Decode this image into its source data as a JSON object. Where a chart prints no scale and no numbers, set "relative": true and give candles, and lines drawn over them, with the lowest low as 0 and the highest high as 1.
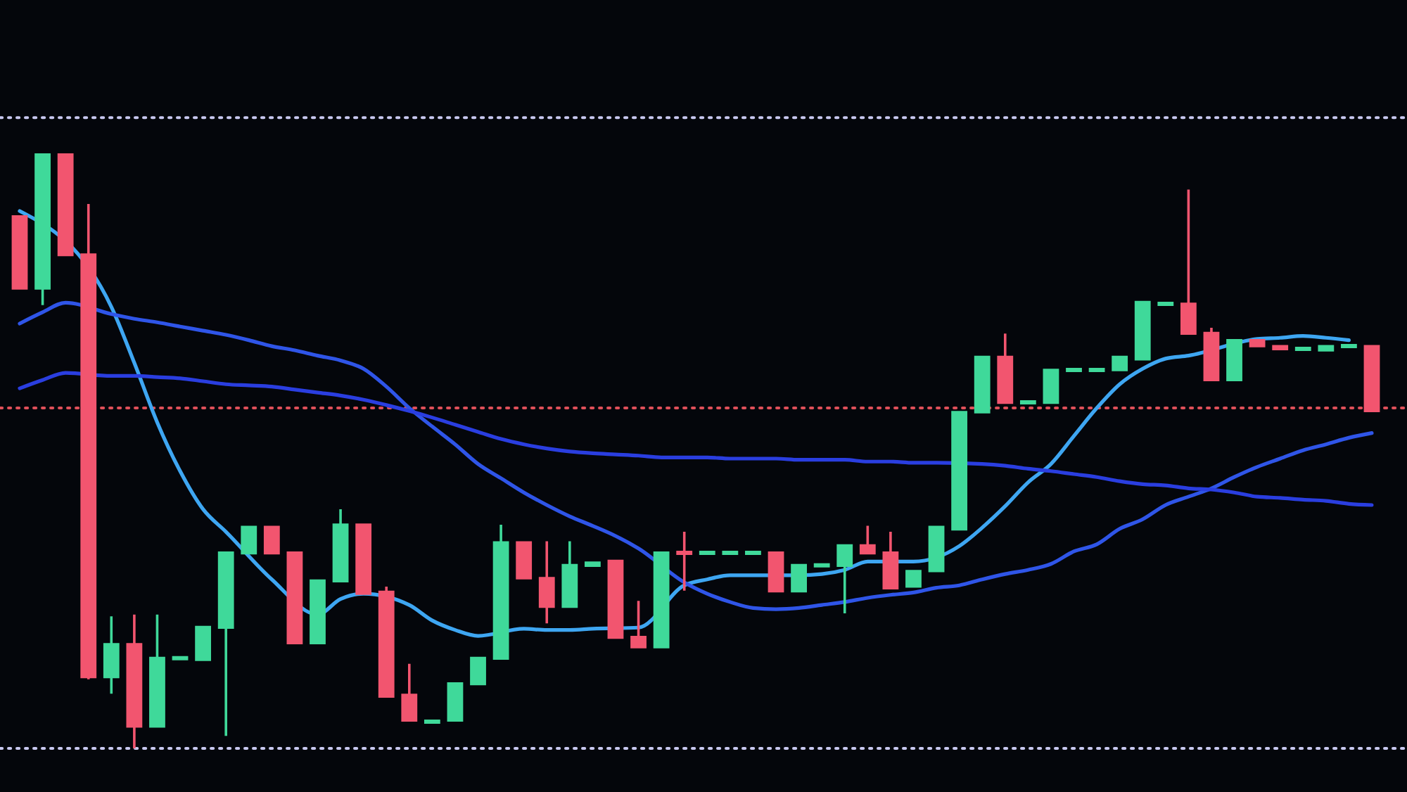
{
  "chart_data": {
    "type": "candlestick",
    "relative": true,
    "categories": [
      null,
      null,
      null,
      null,
      null,
      null,
      null,
      null,
      null,
      null,
      null,
      null,
      null,
      null,
      null,
      null,
      null,
      null,
      null,
      null,
      null,
      null,
      null,
      null,
      null,
      null,
      null,
      null,
      null,
      null,
      null,
      null,
      null,
      null,
      null,
      null,
      null,
      null,
      null,
      null,
      null,
      null,
      null,
      null,
      null,
      null,
      null,
      null,
      null,
      null,
      null,
      null,
      null,
      null,
      null,
      null,
      null,
      null,
      null,
      null
    ],
    "ohlc": [
      [
        0.896,
        0.896,
        0.771,
        0.771
      ],
      [
        0.771,
        1.0,
        0.745,
        1.0
      ],
      [
        1.0,
        1.0,
        0.827,
        0.827
      ],
      [
        0.832,
        0.915,
        0.116,
        0.118
      ],
      [
        0.118,
        0.222,
        0.092,
        0.177
      ],
      [
        0.177,
        0.225,
        0.0,
        0.035
      ],
      [
        0.035,
        0.225,
        0.035,
        0.154
      ],
      [
        0.149,
        0.154,
        0.149,
        0.154
      ],
      [
        0.147,
        0.206,
        0.147,
        0.206
      ],
      [
        0.201,
        0.331,
        0.021,
        0.331
      ],
      [
        0.326,
        0.374,
        0.326,
        0.374
      ],
      [
        0.374,
        0.374,
        0.326,
        0.326
      ],
      [
        0.331,
        0.331,
        0.175,
        0.175
      ],
      [
        0.175,
        0.284,
        0.175,
        0.284
      ],
      [
        0.279,
        0.402,
        0.279,
        0.378
      ],
      [
        0.378,
        0.378,
        0.258,
        0.258
      ],
      [
        0.265,
        0.272,
        0.085,
        0.085
      ],
      [
        0.092,
        0.142,
        0.045,
        0.045
      ],
      [
        0.043,
        0.047,
        0.043,
        0.047
      ],
      [
        0.045,
        0.111,
        0.045,
        0.111
      ],
      [
        0.106,
        0.154,
        0.106,
        0.154
      ],
      [
        0.149,
        0.376,
        0.149,
        0.348
      ],
      [
        0.348,
        0.348,
        0.284,
        0.284
      ],
      [
        0.288,
        0.348,
        0.21,
        0.236
      ],
      [
        0.236,
        0.348,
        0.236,
        0.31
      ],
      [
        0.305,
        0.314,
        0.305,
        0.314
      ],
      [
        0.317,
        0.317,
        0.184,
        0.184
      ],
      [
        0.189,
        0.248,
        0.168,
        0.168
      ],
      [
        0.168,
        0.331,
        0.168,
        0.331
      ],
      [
        0.331,
        0.364,
        0.265,
        0.326
      ],
      [
        0.326,
        0.331,
        0.326,
        0.331
      ],
      [
        0.326,
        0.331,
        0.326,
        0.331
      ],
      [
        0.326,
        0.331,
        0.326,
        0.331
      ],
      [
        0.331,
        0.331,
        0.262,
        0.262
      ],
      [
        0.262,
        0.31,
        0.262,
        0.31
      ],
      [
        0.305,
        0.31,
        0.305,
        0.31
      ],
      [
        0.305,
        0.343,
        0.227,
        0.343
      ],
      [
        0.343,
        0.374,
        0.326,
        0.326
      ],
      [
        0.331,
        0.364,
        0.267,
        0.267
      ],
      [
        0.27,
        0.3,
        0.27,
        0.3
      ],
      [
        0.296,
        0.374,
        0.296,
        0.374
      ],
      [
        0.366,
        0.567,
        0.366,
        0.567
      ],
      [
        0.563,
        0.66,
        0.563,
        0.66
      ],
      [
        0.66,
        0.697,
        0.579,
        0.579
      ],
      [
        0.579,
        0.584,
        0.579,
        0.584
      ],
      [
        0.579,
        0.638,
        0.579,
        0.638
      ],
      [
        0.634,
        0.638,
        0.634,
        0.638
      ],
      [
        0.634,
        0.638,
        0.634,
        0.638
      ],
      [
        0.634,
        0.66,
        0.634,
        0.66
      ],
      [
        0.652,
        0.752,
        0.652,
        0.752
      ],
      [
        0.745,
        0.749,
        0.745,
        0.749
      ],
      [
        0.749,
        0.939,
        0.695,
        0.695
      ],
      [
        0.7,
        0.707,
        0.617,
        0.617
      ],
      [
        0.617,
        0.688,
        0.617,
        0.688
      ],
      [
        0.688,
        0.688,
        0.674,
        0.674
      ],
      [
        0.678,
        0.678,
        0.669,
        0.669
      ],
      [
        0.669,
        0.674,
        0.669,
        0.674
      ],
      [
        0.667,
        0.678,
        0.667,
        0.678
      ],
      [
        0.674,
        0.678,
        0.674,
        0.678
      ],
      [
        0.678,
        0.678,
        0.565,
        0.565
      ]
    ],
    "colors": [
      "#f2556f",
      "#3fd99a",
      "#f2556f",
      "#f2556f",
      "#3fd99a",
      "#f2556f",
      "#3fd99a",
      "#3fd99a",
      "#3fd99a",
      "#3fd99a",
      "#3fd99a",
      "#f2556f",
      "#f2556f",
      "#3fd99a",
      "#3fd99a",
      "#f2556f",
      "#f2556f",
      "#f2556f",
      "#3fd99a",
      "#3fd99a",
      "#3fd99a",
      "#3fd99a",
      "#f2556f",
      "#f2556f",
      "#3fd99a",
      "#3fd99a",
      "#f2556f",
      "#f2556f",
      "#3fd99a",
      "#f2556f",
      "#3fd99a",
      "#3fd99a",
      "#3fd99a",
      "#f2556f",
      "#3fd99a",
      "#3fd99a",
      "#3fd99a",
      "#f2556f",
      "#f2556f",
      "#3fd99a",
      "#3fd99a",
      "#3fd99a",
      "#3fd99a",
      "#f2556f",
      "#3fd99a",
      "#3fd99a",
      "#3fd99a",
      "#3fd99a",
      "#3fd99a",
      "#3fd99a",
      "#3fd99a",
      "#f2556f",
      "#f2556f",
      "#3fd99a",
      "#f2556f",
      "#f2556f",
      "#3fd99a",
      "#3fd99a",
      "#3fd99a",
      "#f2556f"
    ],
    "series": [
      {
        "type": "line",
        "color": "#3ea6f2",
        "values": [
          0.903,
          null,
          null,
          null,
          0.742,
          0.648,
          0.548,
          0.466,
          0.402,
          0.364,
          null,
          0.284,
          null,
          0.225,
          0.251,
          0.26,
          null,
          0.241,
          0.215,
          0.199,
          0.189,
          null,
          0.201,
          0.199,
          0.199,
          0.201,
          null,
          0.203,
          null,
          0.274,
          0.284,
          0.291,
          0.291,
          0.291,
          0.291,
          0.293,
          0.3,
          0.314,
          null,
          0.314,
          null,
          0.34,
          0.371,
          0.407,
          0.447,
          0.478,
          0.525,
          0.572,
          0.612,
          0.638,
          0.655,
          0.66,
          null,
          null,
          0.688,
          0.69,
          0.693,
          0.69,
          0.686,
          null
        ]
      },
      {
        "type": "line",
        "color": "#2f55e8",
        "values": [
          0.714,
          0.733,
          0.749,
          null,
          0.73,
          0.722,
          0.716,
          0.709,
          0.702,
          0.695,
          0.686,
          0.676,
          0.669,
          0.66,
          0.652,
          0.638,
          0.608,
          0.572,
          0.541,
          0.511,
          0.478,
          0.454,
          0.43,
          0.409,
          0.39,
          0.374,
          0.357,
          0.336,
          null,
          0.279,
          0.26,
          0.246,
          0.236,
          0.234,
          0.236,
          0.241,
          0.246,
          0.253,
          0.258,
          0.262,
          0.27,
          0.274,
          0.284,
          0.293,
          0.3,
          0.31,
          0.331,
          0.343,
          0.369,
          0.385,
          0.409,
          0.423,
          0.437,
          0.456,
          0.473,
          0.487,
          0.501,
          0.511,
          0.522,
          0.53
        ]
      },
      {
        "type": "line",
        "color": "#2a3ee0",
        "values": [
          0.605,
          0.619,
          0.631,
          null,
          0.626,
          0.626,
          0.624,
          0.622,
          0.617,
          0.612,
          0.61,
          0.608,
          0.603,
          0.598,
          0.593,
          0.586,
          0.577,
          0.567,
          0.556,
          0.544,
          0.532,
          0.52,
          0.511,
          0.504,
          0.499,
          0.496,
          0.494,
          0.492,
          0.489,
          0.489,
          0.489,
          0.487,
          0.487,
          0.487,
          0.485,
          0.485,
          0.485,
          0.482,
          0.482,
          0.48,
          0.48,
          null,
          0.478,
          0.475,
          0.47,
          0.466,
          0.461,
          0.456,
          0.449,
          0.444,
          0.442,
          0.437,
          0.435,
          0.43,
          0.423,
          0.421,
          0.418,
          0.416,
          0.411,
          0.409
        ]
      }
    ],
    "ref_lines": [
      {
        "axis": "y",
        "value": 1.06,
        "color": "#c8c8f0",
        "line_style": "dotted"
      },
      {
        "axis": "y",
        "value": 0.572,
        "color": "#e0505a",
        "line_style": "dotted"
      },
      {
        "axis": "y",
        "value": 0.0,
        "color": "#c8c8f0",
        "line_style": "dotted"
      }
    ]
  }
}
